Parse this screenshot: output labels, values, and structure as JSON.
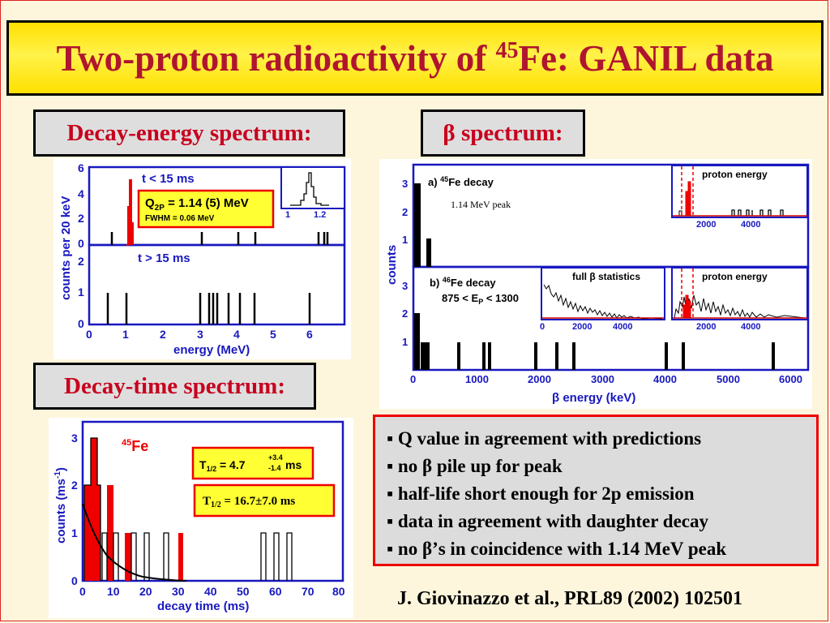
{
  "slide": {
    "title_pre": "Two-proton radioactivity of ",
    "title_sup": "45",
    "title_post": "Fe: GANIL data"
  },
  "labels": {
    "decay_energy": "Decay-energy spectrum:",
    "beta_symbol": "β",
    "beta_rest": " spectrum:",
    "decay_time": "Decay-time spectrum:"
  },
  "energy_plot": {
    "top_title": "t < 15 ms",
    "bottom_title": "t > 15 ms",
    "q_label": "Q",
    "q_sub": "2P",
    "q_value": " = 1.14 (5) MeV",
    "fwhm": "FWHM = 0.06 MeV",
    "ylabel": "counts per 20 keV",
    "xlabel": "energy (MeV)",
    "x_ticks": [
      "0",
      "1",
      "2",
      "3",
      "4",
      "5",
      "6"
    ],
    "top_y_ticks": [
      "0",
      "2",
      "4",
      "6"
    ],
    "bottom_y_ticks": [
      "0",
      "1",
      "2"
    ],
    "inset_ticks": [
      "1",
      "1.2"
    ]
  },
  "beta_plot": {
    "a_label_pre": "a) ",
    "a_label_sup": "45",
    "a_label_post": "Fe decay",
    "peak_note": "1.14 MeV peak",
    "b_label_pre": "b) ",
    "b_label_sup": "46",
    "b_label_post": "Fe decay",
    "b_cut": "875 < E",
    "b_cut_sub": "P",
    "b_cut_post": " < 1300",
    "inset_proton": "proton energy",
    "inset_full": "full β statistics",
    "inset_ticks": [
      "2000",
      "4000"
    ],
    "inset_ticks_full": [
      "0",
      "2000",
      "4000"
    ],
    "ylabel": "counts",
    "xlabel": "β energy (keV)",
    "x_ticks": [
      "0",
      "1000",
      "2000",
      "3000",
      "4000",
      "5000",
      "6000"
    ],
    "y_ticks": [
      "1",
      "2",
      "3"
    ]
  },
  "time_plot": {
    "iso_sup": "45",
    "iso": "Fe",
    "t_half_a_label": "T",
    "t_half_a_sub": "1/2",
    "t_half_a_eq": " =  4.7",
    "t_half_a_plus": "+3.4",
    "t_half_a_minus": "-1.4",
    "t_half_a_unit": "ms",
    "t_half_b_label": "T",
    "t_half_b_sub": "1/2",
    "t_half_b_val": " = 16.7±7.0 ms",
    "ylabel": "counts (ms",
    "ylabel_sup": "-1",
    "ylabel_close": ")",
    "xlabel": "decay time (ms)",
    "x_ticks": [
      "0",
      "10",
      "20",
      "30",
      "40",
      "50",
      "60",
      "70",
      "80"
    ],
    "y_ticks": [
      "0",
      "1",
      "2",
      "3"
    ]
  },
  "bullets": [
    "Q value in agreement with predictions",
    "no β pile up for peak",
    "half-life short enough for 2p emission",
    "data in agreement with daughter decay",
    "no β’s in coincidence with 1.14 MeV peak"
  ],
  "reference": "J. Giovinazzo et al., PRL89 (2002) 102501",
  "colors": {
    "title_text": "#b0152f",
    "label_text": "#c8001e",
    "axis_blue": "#1818c0",
    "hist_red": "#ee0000"
  }
}
